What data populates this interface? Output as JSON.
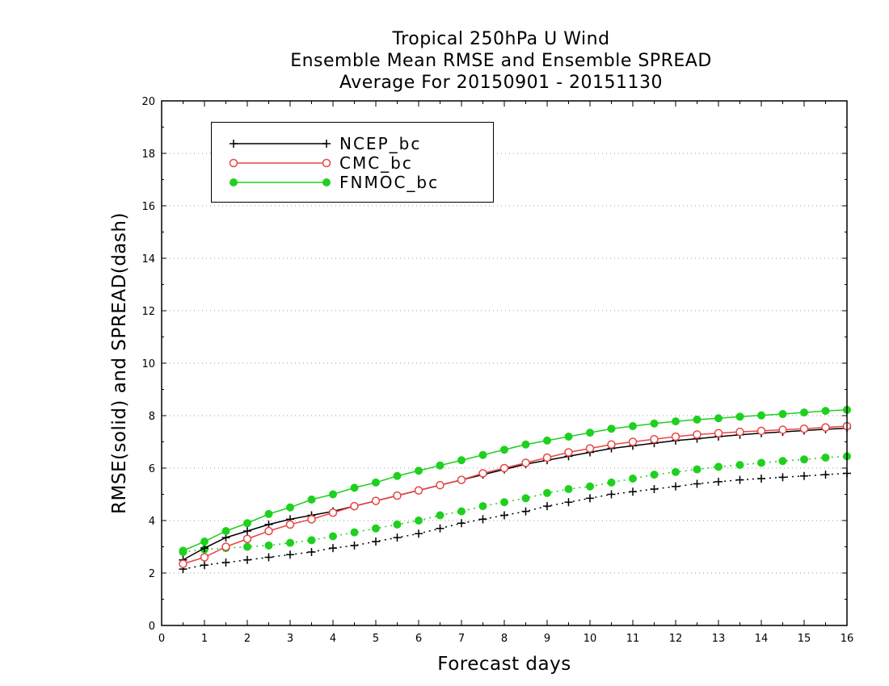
{
  "chart_data": {
    "type": "line",
    "title_lines": [
      "Tropical 250hPa U Wind",
      "Ensemble Mean RMSE and Ensemble SPREAD",
      "Average For 20150901 - 20151130"
    ],
    "xlabel": "Forecast days",
    "ylabel": "RMSE(solid) and SPREAD(dash)",
    "xlim": [
      0,
      16
    ],
    "ylim": [
      0,
      20
    ],
    "xticks": [
      0,
      1,
      2,
      3,
      4,
      5,
      6,
      7,
      8,
      9,
      10,
      11,
      12,
      13,
      14,
      15,
      16
    ],
    "yticks": [
      0,
      2,
      4,
      6,
      8,
      10,
      12,
      14,
      16,
      18,
      20
    ],
    "grid": "horizontal dotted",
    "legend_position": "top-left",
    "x": [
      0.5,
      1,
      1.5,
      2,
      2.5,
      3,
      3.5,
      4,
      4.5,
      5,
      5.5,
      6,
      6.5,
      7,
      7.5,
      8,
      8.5,
      9,
      9.5,
      10,
      10.5,
      11,
      11.5,
      12,
      12.5,
      13,
      13.5,
      14,
      14.5,
      15,
      15.5,
      16
    ],
    "series": [
      {
        "name": "NCEP_bc",
        "color": "#000000",
        "marker": "plus",
        "rmse": [
          2.5,
          2.95,
          3.35,
          3.6,
          3.85,
          4.05,
          4.2,
          4.35,
          4.55,
          4.75,
          4.95,
          5.15,
          5.35,
          5.55,
          5.75,
          5.95,
          6.15,
          6.3,
          6.45,
          6.6,
          6.75,
          6.85,
          6.95,
          7.05,
          7.12,
          7.2,
          7.27,
          7.33,
          7.38,
          7.43,
          7.48,
          7.52
        ],
        "spread": [
          2.15,
          2.3,
          2.4,
          2.5,
          2.6,
          2.7,
          2.8,
          2.95,
          3.05,
          3.2,
          3.35,
          3.5,
          3.7,
          3.9,
          4.05,
          4.2,
          4.35,
          4.55,
          4.7,
          4.85,
          5.0,
          5.1,
          5.2,
          5.3,
          5.4,
          5.48,
          5.55,
          5.6,
          5.65,
          5.7,
          5.75,
          5.8
        ]
      },
      {
        "name": "CMC_bc",
        "color": "#e84545",
        "marker": "open-circle",
        "rmse": [
          2.35,
          2.6,
          3.0,
          3.3,
          3.6,
          3.85,
          4.05,
          4.3,
          4.55,
          4.75,
          4.95,
          5.15,
          5.35,
          5.55,
          5.8,
          6.0,
          6.2,
          6.4,
          6.6,
          6.75,
          6.9,
          7.0,
          7.1,
          7.2,
          7.28,
          7.33,
          7.38,
          7.42,
          7.46,
          7.5,
          7.55,
          7.6
        ],
        "spread": []
      },
      {
        "name": "FNMOC_bc",
        "color": "#1fd01f",
        "marker": "filled-circle",
        "rmse": [
          2.85,
          3.2,
          3.6,
          3.9,
          4.25,
          4.5,
          4.8,
          5.0,
          5.25,
          5.45,
          5.7,
          5.9,
          6.1,
          6.3,
          6.5,
          6.7,
          6.9,
          7.05,
          7.2,
          7.35,
          7.5,
          7.6,
          7.7,
          7.78,
          7.85,
          7.9,
          7.96,
          8.01,
          8.06,
          8.12,
          8.18,
          8.22
        ],
        "spread": [
          2.8,
          2.9,
          2.95,
          3.0,
          3.05,
          3.15,
          3.25,
          3.4,
          3.55,
          3.7,
          3.85,
          4.0,
          4.2,
          4.35,
          4.55,
          4.7,
          4.85,
          5.05,
          5.2,
          5.3,
          5.45,
          5.6,
          5.75,
          5.85,
          5.95,
          6.05,
          6.12,
          6.2,
          6.27,
          6.33,
          6.4,
          6.45
        ]
      }
    ]
  }
}
